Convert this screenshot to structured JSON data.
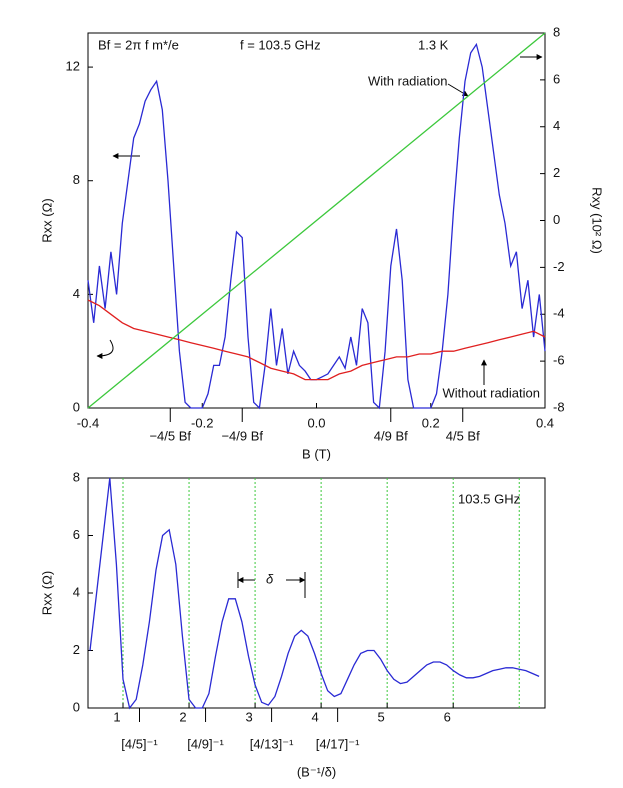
{
  "chart_data": [
    {
      "type": "line",
      "annotations": [
        "Bf = 2π f m*/e",
        "f = 103.5 GHz",
        "1.3 K"
      ],
      "xlabel": "B (T)",
      "ylabel": "Rxx (Ω)",
      "y2label": "Rxy (10² Ω)",
      "xlim": [
        -0.4,
        0.4
      ],
      "ylim": [
        0,
        13.2
      ],
      "y2lim": [
        -8,
        8
      ],
      "xticks": [
        -0.4,
        -0.2,
        {
          "value": 0,
          "label": "0.0"
        },
        0.2,
        0.4
      ],
      "yticks": [
        0,
        4,
        8,
        12
      ],
      "y2ticks": [
        -8,
        -6,
        -4,
        -2,
        0,
        2,
        4,
        6,
        8
      ],
      "xticks2": [
        {
          "value": -0.256,
          "label": "−4/5 Bf"
        },
        {
          "value": -0.13,
          "label": "−4/9 Bf"
        },
        {
          "value": 0.13,
          "label": "4/9 Bf"
        },
        {
          "value": 0.256,
          "label": "4/5 Bf"
        }
      ],
      "series": [
        {
          "name": "With radiation",
          "color": "#2a2ad4",
          "x": [
            -0.4,
            -0.39,
            -0.38,
            -0.37,
            -0.36,
            -0.35,
            -0.34,
            -0.33,
            -0.32,
            -0.31,
            -0.3,
            -0.29,
            -0.28,
            -0.27,
            -0.26,
            -0.25,
            -0.24,
            -0.23,
            -0.22,
            -0.21,
            -0.2,
            -0.19,
            -0.18,
            -0.17,
            -0.16,
            -0.15,
            -0.14,
            -0.13,
            -0.12,
            -0.11,
            -0.1,
            -0.09,
            -0.08,
            -0.07,
            -0.06,
            -0.05,
            -0.04,
            -0.03,
            -0.02,
            -0.01,
            0,
            0.01,
            0.02,
            0.03,
            0.04,
            0.05,
            0.06,
            0.07,
            0.08,
            0.09,
            0.1,
            0.11,
            0.12,
            0.13,
            0.14,
            0.15,
            0.16,
            0.17,
            0.18,
            0.19,
            0.2,
            0.21,
            0.22,
            0.23,
            0.24,
            0.25,
            0.26,
            0.27,
            0.28,
            0.29,
            0.3,
            0.31,
            0.32,
            0.33,
            0.34,
            0.35,
            0.36,
            0.37,
            0.38,
            0.39,
            0.4
          ],
          "values": [
            4.5,
            3.0,
            5.0,
            3.5,
            5.5,
            4.0,
            6.5,
            8.0,
            9.5,
            10.0,
            10.8,
            11.2,
            11.5,
            10.5,
            8.0,
            5.0,
            2.0,
            0.2,
            0,
            0,
            0,
            0.5,
            1.5,
            1.5,
            2.5,
            4.5,
            6.2,
            6.0,
            2.5,
            0.2,
            0,
            1.5,
            3.5,
            1.5,
            2.8,
            1.2,
            2.0,
            1.5,
            1.3,
            1.0,
            1.0,
            1.1,
            1.2,
            1.5,
            1.8,
            1.4,
            2.5,
            1.5,
            3.5,
            3.0,
            0.2,
            0,
            2.0,
            5.0,
            6.3,
            4.5,
            1.0,
            0,
            0,
            0,
            0,
            0.5,
            2.0,
            4.0,
            7.0,
            9.5,
            11.5,
            12.5,
            12.8,
            12.0,
            10.5,
            9.0,
            7.5,
            6.5,
            5.0,
            5.5,
            3.5,
            4.5,
            2.5,
            4.0,
            2.0
          ]
        },
        {
          "name": "Without radiation",
          "color": "#e02020",
          "x": [
            -0.4,
            -0.38,
            -0.36,
            -0.34,
            -0.32,
            -0.3,
            -0.28,
            -0.26,
            -0.24,
            -0.22,
            -0.2,
            -0.18,
            -0.16,
            -0.14,
            -0.12,
            -0.1,
            -0.08,
            -0.06,
            -0.04,
            -0.02,
            0,
            0.02,
            0.04,
            0.06,
            0.08,
            0.1,
            0.12,
            0.14,
            0.16,
            0.18,
            0.2,
            0.22,
            0.24,
            0.26,
            0.28,
            0.3,
            0.32,
            0.34,
            0.36,
            0.38,
            0.4
          ],
          "values": [
            3.8,
            3.6,
            3.3,
            3.0,
            2.8,
            2.7,
            2.6,
            2.5,
            2.4,
            2.3,
            2.2,
            2.1,
            2.0,
            1.9,
            1.8,
            1.6,
            1.4,
            1.3,
            1.2,
            1.0,
            1.0,
            1.0,
            1.2,
            1.3,
            1.5,
            1.6,
            1.7,
            1.8,
            1.8,
            1.9,
            1.9,
            2.0,
            2.0,
            2.1,
            2.2,
            2.3,
            2.4,
            2.5,
            2.6,
            2.7,
            2.5
          ]
        },
        {
          "color": "#3cc83c",
          "axis": "y2",
          "x": [
            -0.4,
            0.4
          ],
          "values": [
            -8,
            8
          ]
        }
      ]
    },
    {
      "type": "line",
      "annotations": [
        "103.5 GHz",
        "δ"
      ],
      "xlabel": "(B⁻¹/δ)",
      "ylabel": "Rxx (Ω)",
      "xlim": [
        0.47,
        7.39
      ],
      "ylim": [
        0,
        8
      ],
      "xticks": [
        1,
        2,
        3,
        4,
        5,
        6
      ],
      "yticks": [
        0,
        2,
        4,
        6,
        8
      ],
      "xgrid": [
        1,
        2,
        3,
        4,
        5,
        6,
        7
      ],
      "grid_color": "#3cc83c",
      "xticks2": [
        {
          "value": 1.25,
          "label": "[4/5]⁻¹"
        },
        {
          "value": 2.25,
          "label": "[4/9]⁻¹"
        },
        {
          "value": 3.25,
          "label": "[4/13]⁻¹"
        },
        {
          "value": 4.25,
          "label": "[4/17]⁻¹"
        }
      ],
      "series": [
        {
          "color": "#2a2ad4",
          "x": [
            0.5,
            0.6,
            0.7,
            0.8,
            0.9,
            1.0,
            1.1,
            1.2,
            1.3,
            1.4,
            1.5,
            1.6,
            1.7,
            1.8,
            1.9,
            2.0,
            2.1,
            2.2,
            2.3,
            2.4,
            2.5,
            2.6,
            2.7,
            2.8,
            2.9,
            3.0,
            3.1,
            3.2,
            3.3,
            3.4,
            3.5,
            3.6,
            3.7,
            3.8,
            3.9,
            4.0,
            4.1,
            4.2,
            4.3,
            4.4,
            4.5,
            4.6,
            4.7,
            4.8,
            4.9,
            5.0,
            5.1,
            5.2,
            5.3,
            5.4,
            5.5,
            5.6,
            5.7,
            5.8,
            5.9,
            6.0,
            6.1,
            6.2,
            6.3,
            6.4,
            6.5,
            6.6,
            6.7,
            6.8,
            6.9,
            7.0,
            7.1,
            7.2,
            7.3
          ],
          "values": [
            2.0,
            4.0,
            6.0,
            8.0,
            5.0,
            1.0,
            0,
            0.3,
            1.5,
            3.0,
            4.8,
            6.0,
            6.2,
            5.0,
            2.5,
            0.3,
            0,
            0,
            0.5,
            1.8,
            3.0,
            3.8,
            3.8,
            3.0,
            1.8,
            0.8,
            0.2,
            0.1,
            0.4,
            1.1,
            1.9,
            2.5,
            2.7,
            2.5,
            1.9,
            1.2,
            0.6,
            0.4,
            0.5,
            1.0,
            1.5,
            1.9,
            2.0,
            2.0,
            1.7,
            1.3,
            1.0,
            0.85,
            0.9,
            1.1,
            1.3,
            1.5,
            1.6,
            1.6,
            1.5,
            1.3,
            1.15,
            1.05,
            1.05,
            1.1,
            1.2,
            1.3,
            1.35,
            1.4,
            1.4,
            1.35,
            1.3,
            1.2,
            1.1
          ]
        }
      ]
    }
  ]
}
